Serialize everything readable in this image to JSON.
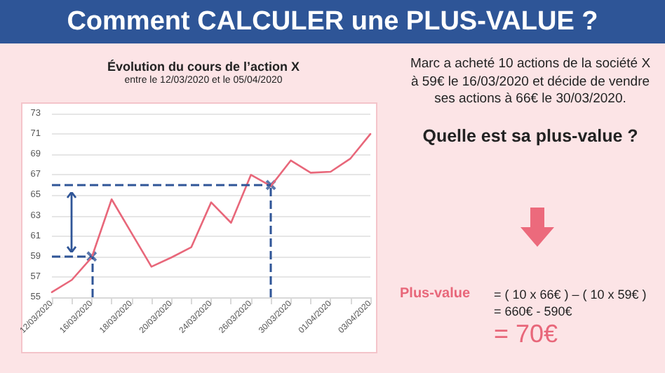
{
  "chart_data": {
    "type": "line",
    "title": "Évolution du cours de l’action X",
    "subtitle": "entre le 12/03/2020 et le 05/04/2020",
    "annotations": [
      "Comment CALCULER une PLUS-VALUE ?",
      "Marc a acheté 10 actions de la société X à 59€ le 16/03/2020 et décide de vendre ses actions à 66€ le 30/03/2020.",
      "Quelle est sa plus-value ?",
      "Plus-value",
      "= ( 10 x 66€ ) – ( 10 x 59€ )",
      "= 660€ - 590€",
      "= 70€"
    ],
    "categories": [
      "12/03/2020",
      null,
      "16/03/2020",
      null,
      "18/03/2020",
      null,
      "20/03/2020",
      null,
      "24/03/2020",
      null,
      "26/03/2020",
      null,
      "30/03/2020",
      null,
      "01/04/2020",
      null,
      "03/04/2020"
    ],
    "series": [
      {
        "color": "#e8677a",
        "marker": "none",
        "values": [
          55.5,
          56.7,
          58.9,
          64.6,
          61.3,
          58.0,
          58.9,
          59.9,
          64.3,
          62.3,
          67.0,
          65.9,
          68.4,
          67.2,
          67.3,
          68.6,
          71.0
        ]
      },
      {
        "type": "scatter",
        "color": "#2f5597",
        "marker": "cross",
        "line_style": "dashed",
        "values": [
          null,
          null,
          59,
          null,
          null,
          null,
          null,
          null,
          null,
          null,
          null,
          66,
          null,
          null,
          null,
          null,
          null
        ]
      }
    ],
    "ylim": [
      55,
      73
    ],
    "yticks": [
      55,
      57,
      59,
      61,
      63,
      65,
      67,
      69,
      71,
      73
    ],
    "ref_lines": [
      {
        "axis": "y",
        "value": 59,
        "color": "#2f5597",
        "line_style": "dashed"
      },
      {
        "axis": "y",
        "value": 66,
        "color": "#2f5597",
        "line_style": "dashed"
      }
    ],
    "grid": "y"
  }
}
